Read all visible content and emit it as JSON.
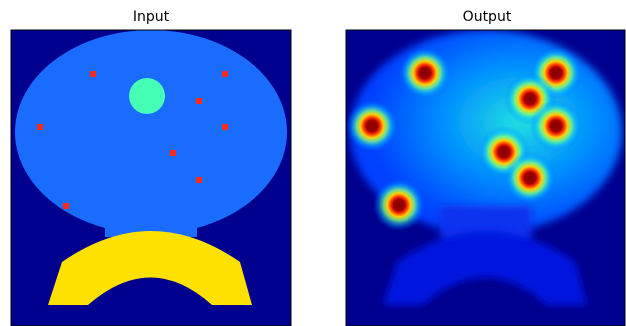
{
  "panels": [
    {
      "title": "Input"
    },
    {
      "title": "Output"
    }
  ]
}
